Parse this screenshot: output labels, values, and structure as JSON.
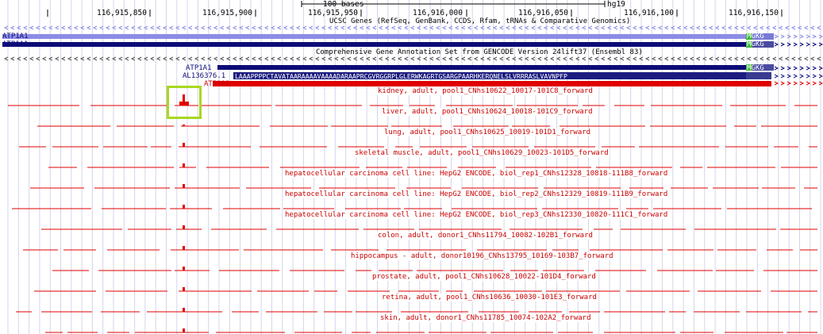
{
  "ruler": {
    "scale_label": "100 bases",
    "assembly": "hg19",
    "ticks": [
      "116,915,850",
      "116,915,900",
      "116,915,950",
      "116,916,000",
      "116,916,050",
      "116,916,100",
      "116,916,150"
    ]
  },
  "ucsc_track": {
    "title": "UCSC Genes (RefSeq, GenBank, CCDS, Rfam, tRNAs & Comparative Genomics)",
    "gene1": "ATP1A1",
    "gene2": "ATP1A1",
    "aa_end": "MGKG"
  },
  "gencode_track": {
    "title": "Comprehensive Gene Annotation Set from GENCODE Version 24lift37 (Ensembl 83)",
    "gene1": "ATP1A1",
    "gene2": "AL136376.1",
    "gene3": "ATP1A1",
    "aa_top": "MGKG",
    "aa_seq": "LAAAPPPPCTAVATAARAAAAVAAAADARAAPRCGVRGGRPLGLERWKAGRTGSARGPAARHKERQNELSLVRRRASLVAVNPFP"
  },
  "colors": {
    "ucsc_light": "#8c8ce6",
    "ucsc_dark": "#0c0c78",
    "gencode_red": "#e00000",
    "fantom_red": "#e00000",
    "highlight": "#a8d820",
    "green_exon": "#3cb43c"
  },
  "fantom_tracks": [
    "kidney, adult, pool1_CNhs10622_10017-101C8_forward",
    "liver, adult, pool1_CNhs10624_10018-101C9_forward",
    "lung, adult, pool1_CNhs10625_10019-101D1_forward",
    "skeletal muscle, adult, pool1_CNhs10629_10023-101D5_forward",
    "hepatocellular carcinoma cell line: HepG2 ENCODE, biol_rep1_CNhs12328_10818-111B8_forward",
    "hepatocellular carcinoma cell line: HepG2 ENCODE, biol_rep2_CNhs12329_10819-111B9_forward",
    "hepatocellular carcinoma cell line: HepG2 ENCODE, biol_rep3_CNhs12330_10820-111C1_forward",
    "colon, adult, donor1_CNhs11794_10082-102B1_forward",
    "hippocampus - adult, donor10196_CNhs13795_10169-103B7_forward",
    "prostate, adult, pool1_CNhs10628_10022-101D4_forward",
    "retina, adult, pool1_CNhs10636_10030-101E3_forward",
    "skin, adult, donor1_CNhs11785_10074-102A2_forward"
  ]
}
